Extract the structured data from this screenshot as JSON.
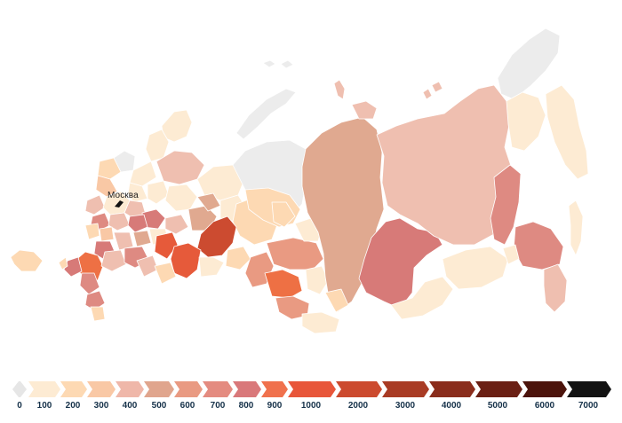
{
  "city": {
    "label": "Москва"
  },
  "legend": {
    "ticks": [
      "0",
      "100",
      "200",
      "300",
      "400",
      "500",
      "600",
      "700",
      "800",
      "900",
      "1000",
      "2000",
      "3000",
      "4000",
      "5000",
      "6000",
      "7000"
    ],
    "colors": [
      "#e6e6e6",
      "#fdebd3",
      "#fdd9b3",
      "#f9c8a5",
      "#efb7a9",
      "#e0a58d",
      "#e99a82",
      "#e48b80",
      "#d9787a",
      "#f0714d",
      "#e8563a",
      "#cc4a2e",
      "#a93b24",
      "#8a2d1c",
      "#6a1f14",
      "#4c140c",
      "#121212"
    ]
  },
  "palette": {
    "no_data": "#ececec",
    "lightest": "#fdebd3",
    "light": "#fdd9b3",
    "mid_light": "#f9c8a5",
    "pink": "#efbfb0",
    "tan": "#e0a990",
    "salmon": "#e99a82",
    "rose": "#de8a82",
    "dusty_red": "#d77a78",
    "orange": "#ee7044",
    "orange_red": "#e65a3a",
    "red": "#cc4b30"
  }
}
